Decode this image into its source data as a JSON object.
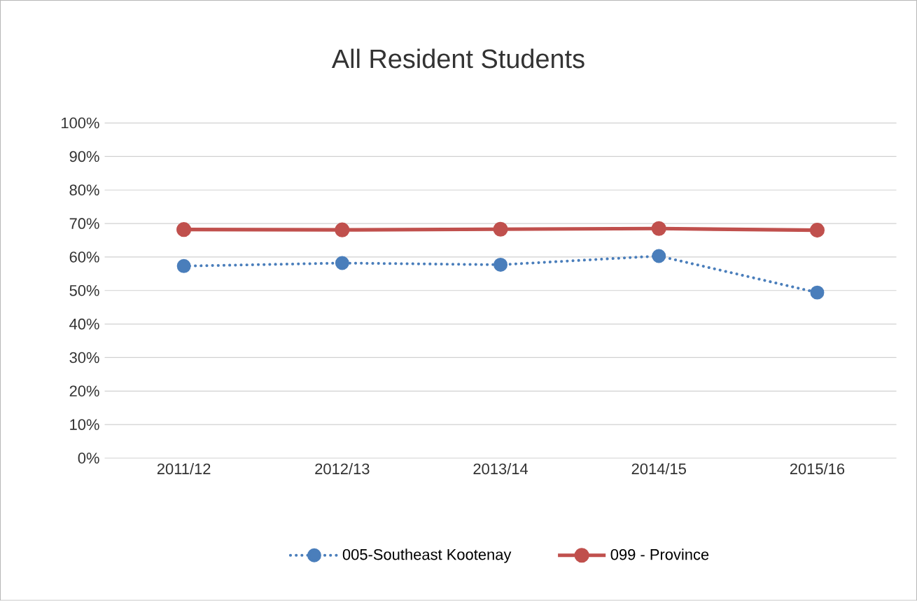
{
  "chart_data": {
    "type": "line",
    "title": "All Resident Students",
    "categories": [
      "2011/12",
      "2012/13",
      "2013/14",
      "2014/15",
      "2015/16"
    ],
    "series": [
      {
        "name": "005-Southeast Kootenay",
        "color": "#4a7ebb",
        "line_style": "dotted",
        "values": [
          57.3,
          58.2,
          57.7,
          60.3,
          49.4
        ]
      },
      {
        "name": "099 - Province",
        "color": "#c0504d",
        "line_style": "solid",
        "values": [
          68.2,
          68.1,
          68.3,
          68.5,
          68.0
        ]
      }
    ],
    "ylim": [
      0,
      100
    ],
    "yticks": [
      {
        "value": 0,
        "label": "0%"
      },
      {
        "value": 10,
        "label": "10%"
      },
      {
        "value": 20,
        "label": "20%"
      },
      {
        "value": 30,
        "label": "30%"
      },
      {
        "value": 40,
        "label": "40%"
      },
      {
        "value": 50,
        "label": "50%"
      },
      {
        "value": 60,
        "label": "60%"
      },
      {
        "value": 70,
        "label": "70%"
      },
      {
        "value": 80,
        "label": "80%"
      },
      {
        "value": 90,
        "label": "90%"
      },
      {
        "value": 100,
        "label": "100%"
      }
    ],
    "grid": "y",
    "legend": "bottom",
    "marker": "circle"
  }
}
